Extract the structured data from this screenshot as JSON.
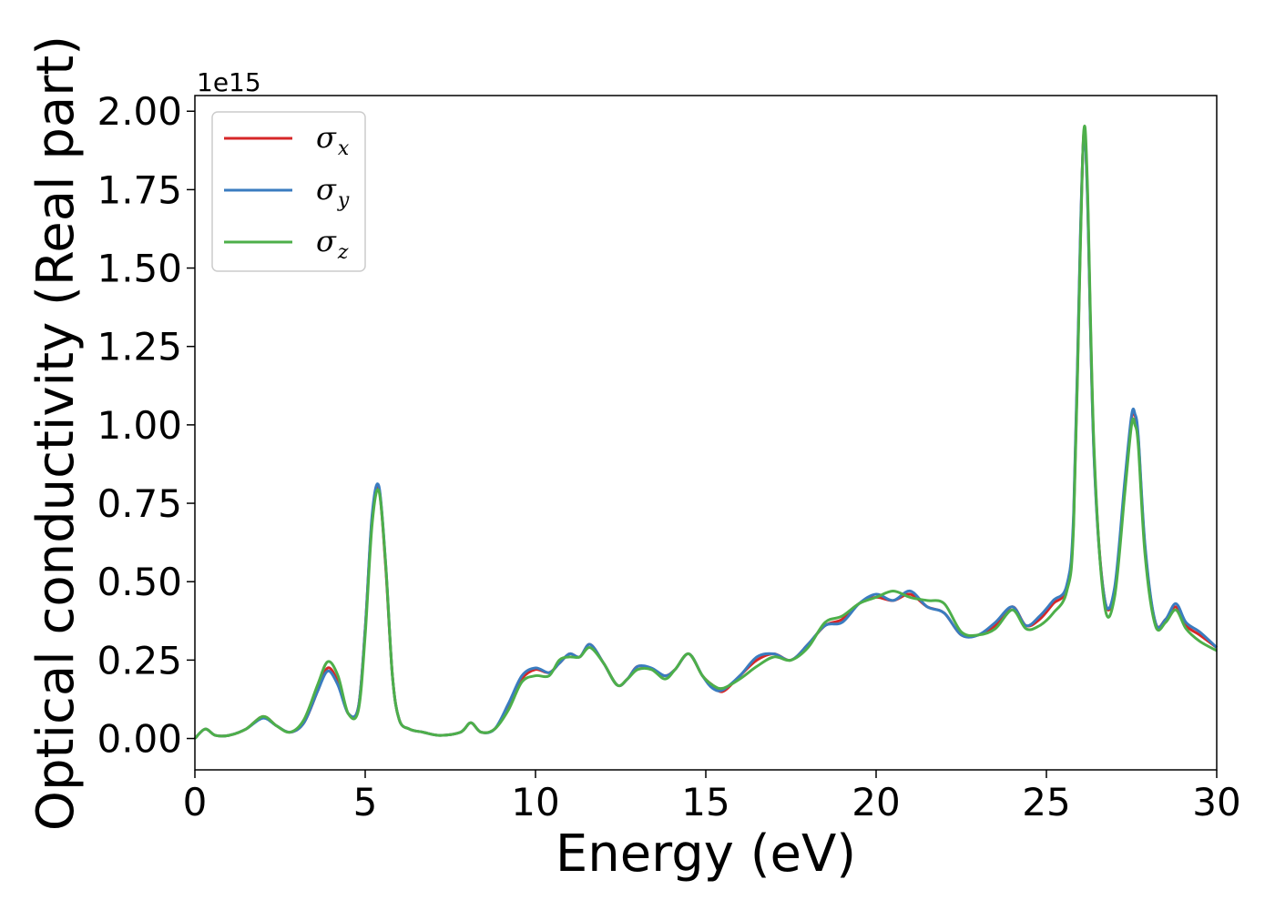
{
  "chart_data": {
    "type": "line",
    "title": "",
    "xlabel": "Energy (eV)",
    "ylabel": "Optical conductivity (Real part)",
    "y_offset_label": "1e15",
    "xlim": [
      0,
      30
    ],
    "ylim": [
      -0.1,
      2.05
    ],
    "xticks": [
      0,
      5,
      10,
      15,
      20,
      25,
      30
    ],
    "xtick_labels": [
      "0",
      "5",
      "10",
      "15",
      "20",
      "25",
      "30"
    ],
    "yticks": [
      0.0,
      0.25,
      0.5,
      0.75,
      1.0,
      1.25,
      1.5,
      1.75,
      2.0
    ],
    "ytick_labels": [
      "0.00",
      "0.25",
      "0.50",
      "0.75",
      "1.00",
      "1.25",
      "1.50",
      "1.75",
      "2.00"
    ],
    "grid": false,
    "legend_position": "top-left",
    "x": [
      0,
      0.3,
      0.6,
      1.0,
      1.5,
      2.0,
      2.4,
      2.8,
      3.2,
      3.6,
      3.9,
      4.2,
      4.5,
      4.8,
      5.0,
      5.2,
      5.4,
      5.6,
      5.8,
      6.0,
      6.3,
      6.7,
      7.2,
      7.8,
      8.1,
      8.4,
      8.8,
      9.2,
      9.6,
      10.0,
      10.4,
      10.7,
      11.0,
      11.3,
      11.6,
      12.0,
      12.4,
      12.7,
      13.0,
      13.4,
      13.8,
      14.1,
      14.5,
      14.9,
      15.2,
      15.5,
      16.0,
      16.5,
      17.0,
      17.5,
      18.0,
      18.5,
      19.0,
      19.5,
      20.0,
      20.5,
      21.0,
      21.5,
      22.0,
      22.5,
      23.0,
      23.5,
      24.0,
      24.4,
      24.8,
      25.2,
      25.6,
      25.8,
      26.0,
      26.1,
      26.2,
      26.4,
      26.7,
      27.0,
      27.3,
      27.5,
      27.6,
      27.7,
      27.9,
      28.2,
      28.5,
      28.8,
      29.1,
      29.5,
      30.0
    ],
    "series": [
      {
        "name": "σx",
        "label_main": "σ",
        "label_sub": "x",
        "color": "#d62728",
        "values": [
          0.0,
          0.03,
          0.01,
          0.01,
          0.03,
          0.07,
          0.04,
          0.02,
          0.05,
          0.15,
          0.225,
          0.18,
          0.08,
          0.1,
          0.35,
          0.7,
          0.8,
          0.55,
          0.2,
          0.06,
          0.03,
          0.02,
          0.01,
          0.02,
          0.05,
          0.02,
          0.03,
          0.1,
          0.19,
          0.22,
          0.21,
          0.24,
          0.27,
          0.26,
          0.3,
          0.24,
          0.17,
          0.19,
          0.23,
          0.22,
          0.2,
          0.22,
          0.27,
          0.2,
          0.17,
          0.15,
          0.2,
          0.25,
          0.27,
          0.25,
          0.3,
          0.36,
          0.38,
          0.43,
          0.45,
          0.44,
          0.46,
          0.42,
          0.4,
          0.33,
          0.33,
          0.36,
          0.42,
          0.36,
          0.38,
          0.43,
          0.48,
          0.7,
          1.6,
          1.93,
          1.75,
          0.9,
          0.45,
          0.47,
          0.8,
          1.02,
          1.03,
          0.95,
          0.6,
          0.37,
          0.38,
          0.42,
          0.36,
          0.33,
          0.29
        ]
      },
      {
        "name": "σy",
        "label_main": "σ",
        "label_sub": "y",
        "color": "#3a7cc0",
        "values": [
          0.0,
          0.03,
          0.01,
          0.01,
          0.03,
          0.065,
          0.04,
          0.02,
          0.05,
          0.15,
          0.215,
          0.17,
          0.08,
          0.1,
          0.35,
          0.71,
          0.805,
          0.56,
          0.2,
          0.06,
          0.03,
          0.02,
          0.01,
          0.02,
          0.05,
          0.02,
          0.03,
          0.11,
          0.2,
          0.225,
          0.21,
          0.24,
          0.27,
          0.26,
          0.3,
          0.24,
          0.17,
          0.19,
          0.23,
          0.225,
          0.2,
          0.22,
          0.27,
          0.2,
          0.16,
          0.155,
          0.2,
          0.26,
          0.27,
          0.25,
          0.3,
          0.36,
          0.37,
          0.43,
          0.46,
          0.44,
          0.47,
          0.42,
          0.4,
          0.33,
          0.33,
          0.37,
          0.42,
          0.36,
          0.39,
          0.44,
          0.49,
          0.72,
          1.62,
          1.92,
          1.74,
          0.89,
          0.45,
          0.48,
          0.82,
          1.03,
          1.035,
          0.96,
          0.61,
          0.37,
          0.38,
          0.43,
          0.37,
          0.34,
          0.29
        ]
      },
      {
        "name": "σz",
        "label_main": "σ",
        "label_sub": "z",
        "color": "#4daf4a",
        "values": [
          0.0,
          0.03,
          0.01,
          0.01,
          0.03,
          0.07,
          0.04,
          0.02,
          0.06,
          0.17,
          0.245,
          0.2,
          0.08,
          0.09,
          0.33,
          0.68,
          0.79,
          0.56,
          0.2,
          0.06,
          0.03,
          0.02,
          0.01,
          0.02,
          0.05,
          0.02,
          0.03,
          0.09,
          0.18,
          0.2,
          0.2,
          0.25,
          0.26,
          0.26,
          0.29,
          0.24,
          0.17,
          0.19,
          0.22,
          0.22,
          0.19,
          0.22,
          0.27,
          0.2,
          0.17,
          0.16,
          0.19,
          0.23,
          0.26,
          0.25,
          0.29,
          0.37,
          0.39,
          0.43,
          0.45,
          0.47,
          0.45,
          0.44,
          0.43,
          0.34,
          0.33,
          0.35,
          0.41,
          0.35,
          0.36,
          0.4,
          0.47,
          0.68,
          1.58,
          1.94,
          1.78,
          0.92,
          0.43,
          0.45,
          0.78,
          1.0,
          1.0,
          0.93,
          0.58,
          0.36,
          0.37,
          0.41,
          0.35,
          0.31,
          0.28
        ]
      }
    ]
  }
}
